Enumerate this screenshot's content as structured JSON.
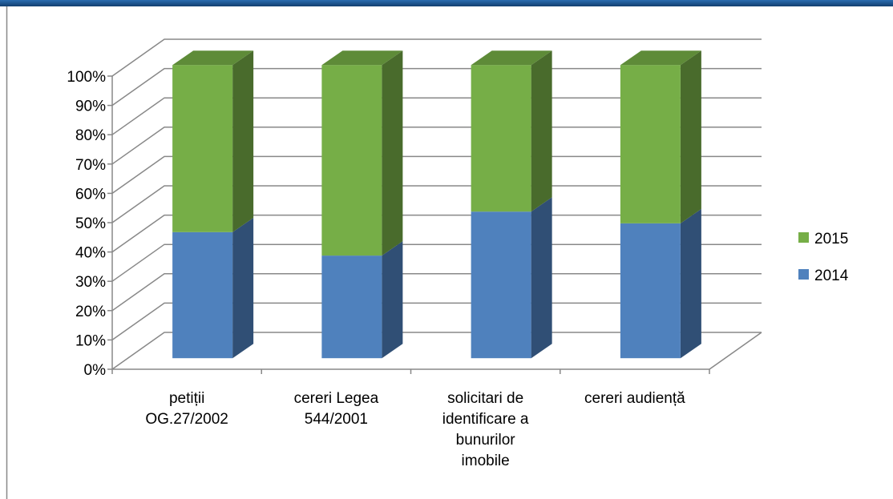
{
  "chart_data": {
    "type": "bar",
    "stacked": true,
    "categories": [
      "petiții OG.27/2002",
      "cereri Legea 544/2001",
      "solicitari de identificare a bunurilor imobile",
      "cereri audiență"
    ],
    "series": [
      {
        "name": "2014",
        "color": "#4f81bd",
        "values": [
          43,
          35,
          50,
          46
        ]
      },
      {
        "name": "2015",
        "color": "#76ae47",
        "values": [
          57,
          65,
          50,
          54
        ]
      }
    ],
    "ylim": [
      0,
      100
    ],
    "yticks": [
      {
        "value": 0,
        "label": "0%"
      },
      {
        "value": 10,
        "label": "10%"
      },
      {
        "value": 20,
        "label": "20%"
      },
      {
        "value": 30,
        "label": "30%"
      },
      {
        "value": 40,
        "label": "40%"
      },
      {
        "value": 50,
        "label": "50%"
      },
      {
        "value": 60,
        "label": "60%"
      },
      {
        "value": 70,
        "label": "70%"
      },
      {
        "value": 80,
        "label": "80%"
      },
      {
        "value": 90,
        "label": "90%"
      },
      {
        "value": 100,
        "label": "100%"
      }
    ],
    "grid": true,
    "legend": "right"
  }
}
